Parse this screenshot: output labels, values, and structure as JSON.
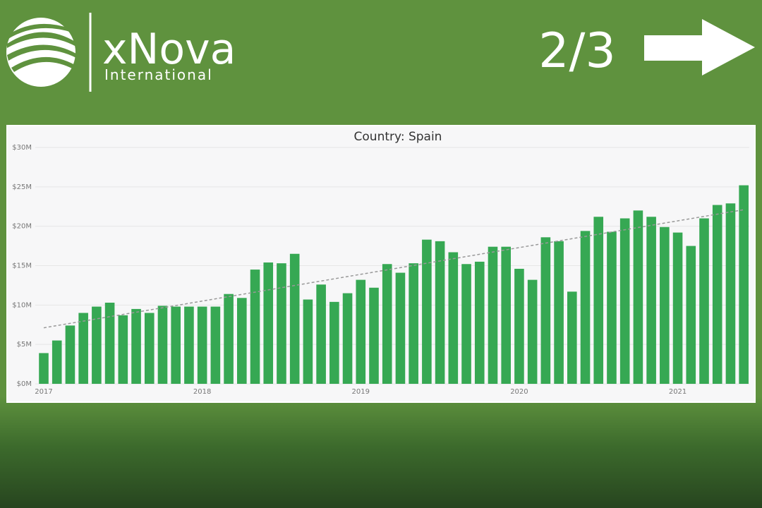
{
  "header": {
    "brand": "xNova",
    "subbrand": "International",
    "page": "2/3"
  },
  "chart_data": {
    "type": "bar",
    "title": "Country: Spain",
    "categories": [
      "2017",
      null,
      null,
      null,
      null,
      null,
      null,
      null,
      null,
      null,
      null,
      null,
      "2018",
      null,
      null,
      null,
      null,
      null,
      null,
      null,
      null,
      null,
      null,
      null,
      "2019",
      null,
      null,
      null,
      null,
      null,
      null,
      null,
      null,
      null,
      null,
      null,
      "2020",
      null,
      null,
      null,
      null,
      null,
      null,
      null,
      null,
      null,
      null,
      null,
      "2021",
      null,
      null,
      null,
      null,
      null
    ],
    "values": [
      3.9,
      5.5,
      7.4,
      9.0,
      9.8,
      10.3,
      8.7,
      9.5,
      9.0,
      9.9,
      9.8,
      9.8,
      9.8,
      9.8,
      11.4,
      10.9,
      14.5,
      15.4,
      15.3,
      16.5,
      10.7,
      12.6,
      10.4,
      11.5,
      13.2,
      12.2,
      15.2,
      14.1,
      15.3,
      18.3,
      18.1,
      16.7,
      15.2,
      15.5,
      17.4,
      17.4,
      14.6,
      13.2,
      18.6,
      18.1,
      11.7,
      19.4,
      21.2,
      19.3,
      21.0,
      22.0,
      21.2,
      19.9,
      19.2,
      17.5,
      21.0,
      22.7,
      22.9,
      25.2
    ],
    "color": "#36a853",
    "trendline": true,
    "ylim": [
      0,
      30
    ],
    "yticks": [
      {
        "value": 0,
        "label": "$0M"
      },
      {
        "value": 5,
        "label": "$5M"
      },
      {
        "value": 10,
        "label": "$10M"
      },
      {
        "value": 15,
        "label": "$15M"
      },
      {
        "value": 20,
        "label": "$20M"
      },
      {
        "value": 25,
        "label": "$25M"
      },
      {
        "value": 30,
        "label": "$30M"
      }
    ],
    "grid": true
  }
}
